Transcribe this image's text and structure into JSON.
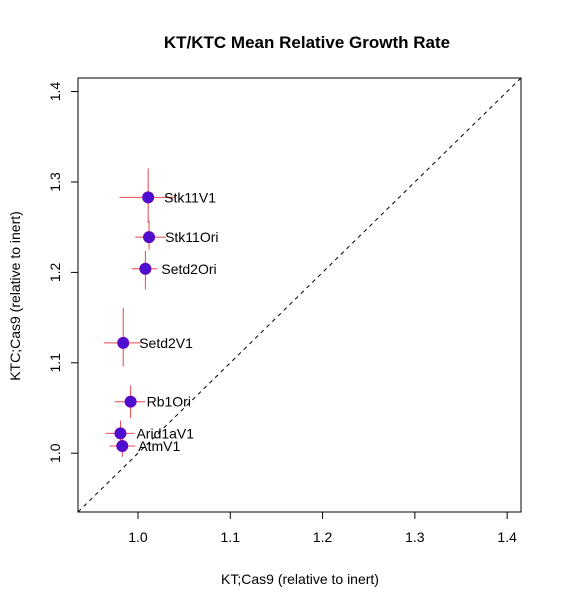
{
  "chart_data": {
    "type": "scatter",
    "title": "KT/KTC Mean Relative Growth Rate",
    "xlabel": "KT;Cas9 (relative to inert)",
    "ylabel": "KTC;Cas9 (relative to inert)",
    "xlim": [
      0.935,
      1.415
    ],
    "ylim": [
      0.935,
      1.415
    ],
    "x_ticks": [
      1.0,
      1.1,
      1.2,
      1.3,
      1.4
    ],
    "y_ticks": [
      1.0,
      1.1,
      1.2,
      1.3,
      1.4
    ],
    "x_tick_labels": [
      "1.0",
      "1.1",
      "1.2",
      "1.3",
      "1.4"
    ],
    "y_tick_labels": [
      "1.0",
      "1.1",
      "1.2",
      "1.3",
      "1.4"
    ],
    "reference_line": "y = x (dashed)",
    "grid": false,
    "colors": {
      "point_fill": "#4b0fd2",
      "point_stroke": "#6a00b8",
      "error_bars": "#e8474f",
      "reference_line": "#000000"
    },
    "points": [
      {
        "label": "Stk11V1",
        "x": 1.011,
        "y": 1.283,
        "x_err": [
          0.98,
          1.04
        ],
        "y_err": [
          1.255,
          1.315
        ]
      },
      {
        "label": "Stk11Ori",
        "x": 1.012,
        "y": 1.239,
        "x_err": [
          0.997,
          1.03
        ],
        "y_err": [
          1.225,
          1.257
        ]
      },
      {
        "label": "Setd2Ori",
        "x": 1.008,
        "y": 1.204,
        "x_err": [
          0.993,
          1.021
        ],
        "y_err": [
          1.181,
          1.224
        ]
      },
      {
        "label": "Setd2V1",
        "x": 0.984,
        "y": 1.122,
        "x_err": [
          0.963,
          1.003
        ],
        "y_err": [
          1.096,
          1.161
        ]
      },
      {
        "label": "Rb1Ori",
        "x": 0.992,
        "y": 1.057,
        "x_err": [
          0.975,
          1.008
        ],
        "y_err": [
          1.039,
          1.075
        ]
      },
      {
        "label": "Arid1aV1",
        "x": 0.981,
        "y": 1.022,
        "x_err": [
          0.965,
          0.996
        ],
        "y_err": [
          1.008,
          1.036
        ]
      },
      {
        "label": "AtmV1",
        "x": 0.983,
        "y": 1.008,
        "x_err": [
          0.969,
          0.997
        ],
        "y_err": [
          0.996,
          1.02
        ]
      }
    ]
  }
}
